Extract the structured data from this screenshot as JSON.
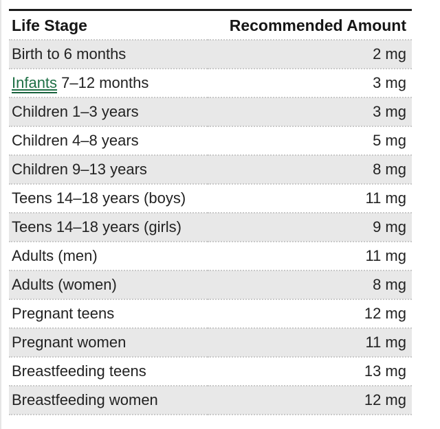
{
  "colors": {
    "top_border": "#1b1b1b",
    "row_shade": "#e8e8e8",
    "dotted_divider": "#c9c9c9",
    "text": "#222222",
    "link_green": "#1d6f44"
  },
  "table": {
    "columns": [
      {
        "label": "Life Stage"
      },
      {
        "label": "Recommended Amount"
      }
    ],
    "rows": [
      {
        "stage": "Birth to 6 months",
        "amount": "2 mg"
      },
      {
        "link_text": "Infants",
        "stage": " 7–12 months",
        "amount": "3 mg"
      },
      {
        "stage": "Children 1–3 years",
        "amount": "3 mg"
      },
      {
        "stage": "Children 4–8 years",
        "amount": "5 mg"
      },
      {
        "stage": "Children 9–13 years",
        "amount": "8 mg"
      },
      {
        "stage": "Teens 14–18 years (boys)",
        "amount": "11 mg"
      },
      {
        "stage": "Teens 14–18 years (girls)",
        "amount": "9 mg"
      },
      {
        "stage": "Adults (men)",
        "amount": "11 mg"
      },
      {
        "stage": "Adults (women)",
        "amount": "8 mg"
      },
      {
        "stage": "Pregnant teens",
        "amount": "12 mg"
      },
      {
        "stage": "Pregnant women",
        "amount": "11 mg"
      },
      {
        "stage": "Breastfeeding teens",
        "amount": "13 mg"
      },
      {
        "stage": "Breastfeeding women",
        "amount": "12 mg"
      }
    ]
  }
}
